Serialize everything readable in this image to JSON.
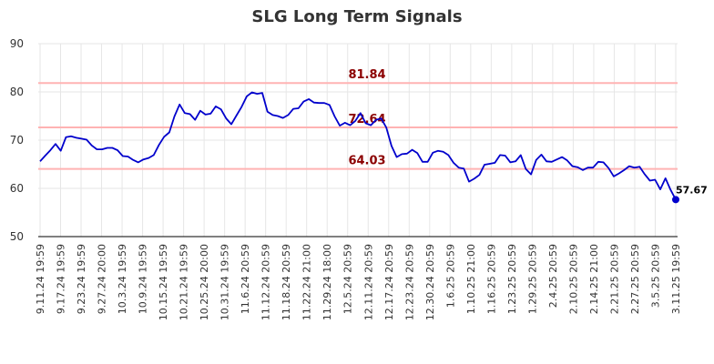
{
  "chart_data": {
    "type": "line",
    "title": "SLG Long Term Signals",
    "ylim": [
      50,
      90
    ],
    "yticks": [
      50,
      60,
      70,
      80,
      90
    ],
    "xtick_labels": [
      "9.11.24 19:59",
      "9.17.24 19:59",
      "9.23.24 19:59",
      "9.27.24 20:00",
      "10.3.24 19:59",
      "10.9.24 19:59",
      "10.15.24 19:59",
      "10.21.24 19:59",
      "10.25.24 20:00",
      "10.31.24 19:59",
      "11.6.24 20:59",
      "11.12.24 20:59",
      "11.18.24 20:59",
      "11.22.24 21:00",
      "11.29.24 18:00",
      "12.5.24 20:59",
      "12.11.24 20:59",
      "12.17.24 20:59",
      "12.23.24 20:59",
      "12.30.24 20:59",
      "1.6.25 20:59",
      "1.10.25 21:00",
      "1.16.25 20:59",
      "1.23.25 20:59",
      "1.29.25 20:59",
      "2.4.25 20:59",
      "2.10.25 20:59",
      "2.14.25 21:00",
      "2.21.25 20:59",
      "2.27.25 20:59",
      "3.5.25 20:59",
      "3.11.25 19:59"
    ],
    "reference_lines": [
      {
        "value": 81.84,
        "label": "81.84"
      },
      {
        "value": 72.64,
        "label": "72.64"
      },
      {
        "value": 64.03,
        "label": "64.03"
      }
    ],
    "series": [
      {
        "values": [
          65.6,
          66.8,
          67.9,
          69.2,
          67.8,
          70.6,
          70.8,
          70.5,
          70.3,
          70.1,
          68.9,
          68.1,
          68.1,
          68.4,
          68.4,
          67.9,
          66.7,
          66.6,
          65.9,
          65.4,
          66.0,
          66.3,
          66.9,
          69.0,
          70.7,
          71.6,
          74.9,
          77.4,
          75.6,
          75.4,
          74.2,
          76.1,
          75.3,
          75.5,
          77.0,
          76.4,
          74.5,
          73.3,
          75.1,
          76.9,
          79.1,
          79.9,
          79.6,
          79.8,
          75.9,
          75.2,
          75.0,
          74.6,
          75.2,
          76.5,
          76.6,
          78.0,
          78.5,
          77.8,
          77.7,
          77.7,
          77.3,
          74.9,
          73.0,
          73.6,
          73.1,
          74.0,
          75.6,
          73.5,
          73.1,
          74.2,
          74.5,
          72.6,
          68.8,
          66.5,
          67.1,
          67.2,
          68.0,
          67.3,
          65.5,
          65.5,
          67.4,
          67.8,
          67.6,
          66.9,
          65.3,
          64.3,
          64.1,
          61.4,
          62.0,
          62.8,
          64.9,
          65.1,
          65.3,
          66.9,
          66.8,
          65.4,
          65.6,
          66.9,
          64.0,
          62.9,
          65.9,
          67.0,
          65.6,
          65.5,
          66.0,
          66.5,
          65.8,
          64.6,
          64.4,
          63.8,
          64.3,
          64.3,
          65.5,
          65.4,
          64.2,
          62.5,
          63.1,
          63.8,
          64.6,
          64.3,
          64.5,
          62.9,
          61.6,
          61.8,
          59.8,
          62.1,
          59.7,
          57.67
        ],
        "last_value_label": "57.67"
      }
    ],
    "grid": true,
    "legend": "none",
    "colors": {
      "line": "#0000cc",
      "reference": "#ffb3b3",
      "ref_label": "#8b0000",
      "grid": "#e6e6e6"
    }
  }
}
